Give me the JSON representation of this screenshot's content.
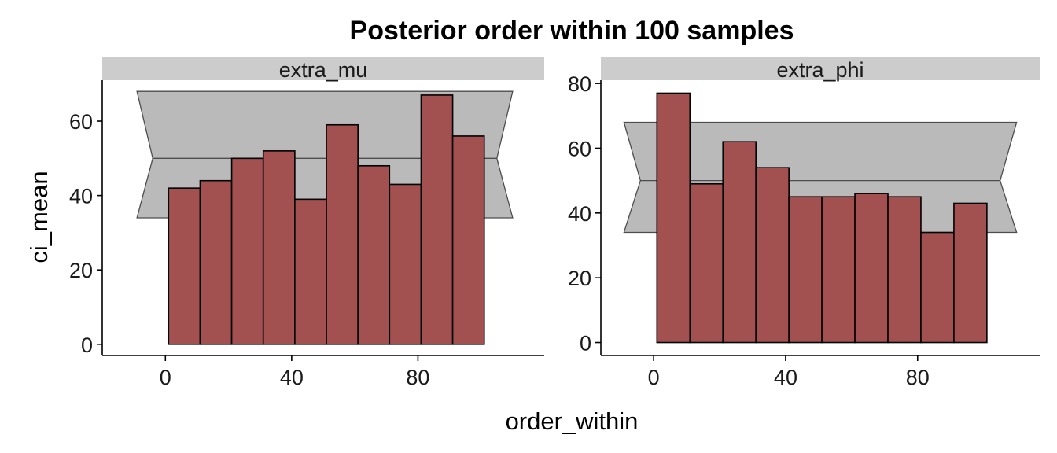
{
  "colors": {
    "bar_fill": "#a25050",
    "bar_stroke": "#000000",
    "band_fill": "#bababa",
    "band_stroke": "#4d4d4d",
    "strip_fill": "#cccccc",
    "axis": "#000000"
  },
  "chart_data": {
    "type": "bar",
    "title": "Posterior order within 100 samples",
    "xlabel": "order_within",
    "ylabel": "ci_mean",
    "grid": false,
    "legend": "none",
    "panels": [
      {
        "name": "extra_mu",
        "strip_label": "extra_mu",
        "xlim": [
          -20,
          120
        ],
        "ylim": [
          -3,
          71
        ],
        "x_ticks": [
          0,
          40,
          80
        ],
        "x_tick_labels": [
          "0",
          "40",
          "80"
        ],
        "y_ticks": [
          0,
          20,
          40,
          60
        ],
        "y_tick_labels": [
          "0",
          "20",
          "40",
          "60"
        ],
        "bin_width": 10,
        "bin_edges": [
          1,
          11,
          21,
          31,
          41,
          51,
          61,
          71,
          81,
          91,
          101
        ],
        "values": [
          42,
          44,
          50,
          52,
          39,
          59,
          48,
          43,
          67,
          56
        ],
        "band": {
          "x_min": -9,
          "x_max": 110,
          "lower": 34,
          "mean": 50,
          "upper": 68
        }
      },
      {
        "name": "extra_phi",
        "strip_label": "extra_phi",
        "xlim": [
          -16,
          117
        ],
        "ylim": [
          -4,
          81
        ],
        "x_ticks": [
          0,
          40,
          80
        ],
        "x_tick_labels": [
          "0",
          "40",
          "80"
        ],
        "y_ticks": [
          0,
          20,
          40,
          60,
          80
        ],
        "y_tick_labels": [
          "0",
          "20",
          "40",
          "60",
          "80"
        ],
        "bin_width": 10,
        "bin_edges": [
          1,
          11,
          21,
          31,
          41,
          51,
          61,
          71,
          81,
          91,
          101
        ],
        "values": [
          77,
          49,
          62,
          54,
          45,
          45,
          46,
          45,
          34,
          43
        ],
        "band": {
          "x_min": -9,
          "x_max": 110,
          "lower": 34,
          "mean": 50,
          "upper": 68
        }
      }
    ]
  }
}
